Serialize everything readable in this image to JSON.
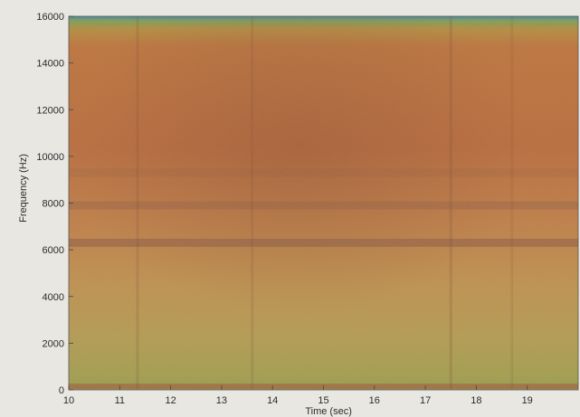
{
  "chart_data": {
    "type": "heatmap",
    "title": "",
    "xlabel": "Time (sec)",
    "ylabel": "Frequency (Hz)",
    "xlim": [
      10,
      20
    ],
    "ylim": [
      0,
      16000
    ],
    "x_ticks": [
      10,
      11,
      12,
      13,
      14,
      15,
      16,
      17,
      18,
      19
    ],
    "y_ticks": [
      0,
      2000,
      4000,
      6000,
      8000,
      10000,
      12000,
      14000,
      16000
    ],
    "grid": false,
    "colors": {
      "high_energy": "#c4723d",
      "mid_energy": "#c99a4f",
      "low_energy": "#9ea94e",
      "near_zero": "#4f8ea0",
      "harmonic_band": "#8e5d43"
    },
    "features": [
      {
        "kind": "horizontal_band",
        "frequency_hz": 6300,
        "strength": 0.85
      },
      {
        "kind": "horizontal_band",
        "frequency_hz": 7900,
        "strength": 0.55
      },
      {
        "kind": "horizontal_band",
        "frequency_hz": 9300,
        "strength": 0.25
      },
      {
        "kind": "horizontal_band",
        "frequency_hz": 150,
        "strength": 0.9
      },
      {
        "kind": "vertical_streak",
        "time_sec": 11.35,
        "strength": 0.35
      },
      {
        "kind": "vertical_streak",
        "time_sec": 13.6,
        "strength": 0.3
      },
      {
        "kind": "vertical_streak",
        "time_sec": 17.5,
        "strength": 0.4
      },
      {
        "kind": "vertical_streak",
        "time_sec": 18.7,
        "strength": 0.25
      }
    ]
  }
}
